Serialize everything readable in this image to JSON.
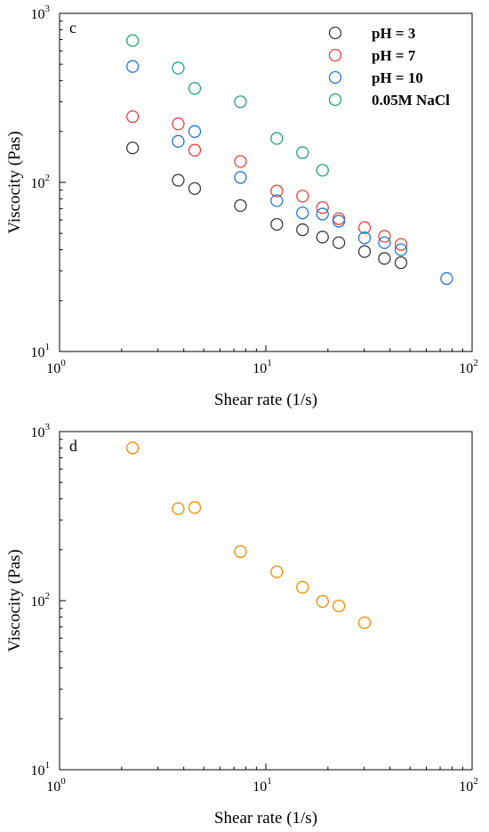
{
  "chart_data": [
    {
      "type": "scatter",
      "panel_label": "c",
      "xlabel": "Shear rate (1/s)",
      "ylabel": "Viscocity (Pas)",
      "xscale": "log",
      "yscale": "log",
      "xlim": [
        1,
        100
      ],
      "ylim": [
        10,
        1000
      ],
      "x_ticks": [
        {
          "base": "10",
          "exp": "0",
          "value": 1
        },
        {
          "base": "10",
          "exp": "1",
          "value": 10
        },
        {
          "base": "10",
          "exp": "2",
          "value": 100
        }
      ],
      "y_ticks": [
        {
          "base": "10",
          "exp": "1",
          "value": 10
        },
        {
          "base": "10",
          "exp": "2",
          "value": 100
        },
        {
          "base": "10",
          "exp": "3",
          "value": 1000
        }
      ],
      "legend_position": "top-right",
      "grid": false,
      "series": [
        {
          "name": "pH = 3",
          "color": "#3a3a3a",
          "x": [
            2.26,
            3.76,
            4.52,
            7.53,
            11.3,
            15.06,
            18.83,
            22.59,
            30.1,
            37.6,
            45.2
          ],
          "y": [
            160,
            103,
            92,
            73,
            56.5,
            52.5,
            47.5,
            44,
            39,
            35.5,
            33.5
          ]
        },
        {
          "name": "pH = 7",
          "color": "#e8413c",
          "x": [
            2.26,
            3.76,
            4.52,
            7.53,
            11.3,
            15.06,
            18.83,
            22.59,
            30.1,
            37.6,
            45.2
          ],
          "y": [
            245,
            222,
            155,
            133,
            89,
            83,
            71,
            61,
            54,
            48,
            43
          ]
        },
        {
          "name": "pH = 10",
          "color": "#1f77d4",
          "x": [
            2.26,
            3.76,
            4.52,
            7.53,
            11.3,
            15.06,
            18.83,
            22.59,
            30.1,
            37.6,
            45.2,
            75.3
          ],
          "y": [
            485,
            175,
            200,
            107,
            78,
            66,
            65,
            59,
            47,
            44,
            40,
            27
          ]
        },
        {
          "name": "0.05M NaCl",
          "color": "#1ea672",
          "x": [
            2.26,
            3.76,
            4.52,
            7.53,
            11.3,
            15.06,
            18.83
          ],
          "y": [
            690,
            475,
            360,
            300,
            182,
            150,
            118
          ]
        }
      ]
    },
    {
      "type": "scatter",
      "panel_label": "d",
      "xlabel": "Shear rate (1/s)",
      "ylabel": "Viscocity (Pas)",
      "xscale": "log",
      "yscale": "log",
      "xlim": [
        1,
        100
      ],
      "ylim": [
        10,
        1000
      ],
      "x_ticks": [
        {
          "base": "10",
          "exp": "0",
          "value": 1
        },
        {
          "base": "10",
          "exp": "1",
          "value": 10
        },
        {
          "base": "10",
          "exp": "2",
          "value": 100
        }
      ],
      "y_ticks": [
        {
          "base": "10",
          "exp": "1",
          "value": 10
        },
        {
          "base": "10",
          "exp": "2",
          "value": 100
        },
        {
          "base": "10",
          "exp": "3",
          "value": 1000
        }
      ],
      "grid": false,
      "series": [
        {
          "color": "#f08c00",
          "x": [
            2.26,
            3.76,
            4.52,
            7.53,
            11.3,
            15.06,
            18.83,
            22.59,
            30.1
          ],
          "y": [
            800,
            350,
            355,
            195,
            148,
            120,
            99,
            93,
            74
          ]
        }
      ]
    }
  ]
}
